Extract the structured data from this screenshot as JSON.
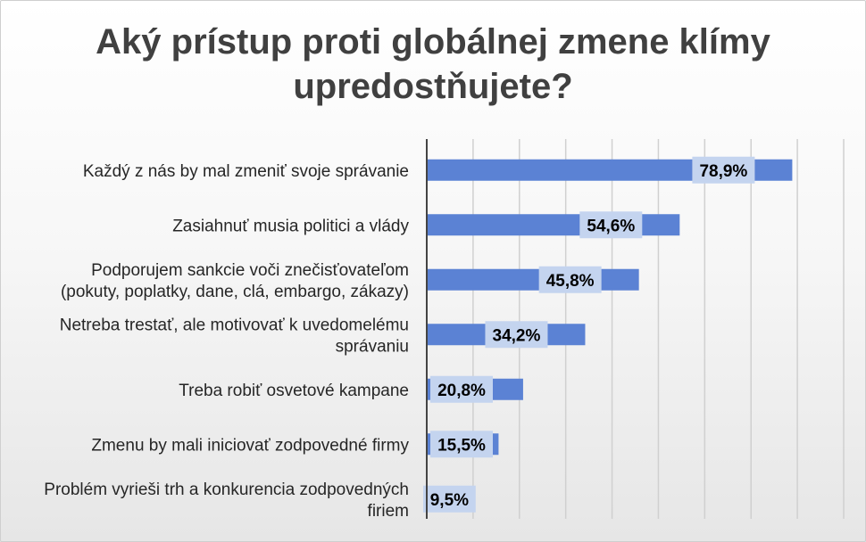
{
  "chart_data": {
    "type": "bar",
    "orientation": "horizontal",
    "title_lines": [
      "Aký prístup proti globálnej zmene klímy",
      "upredostňujete?"
    ],
    "categories": [
      "Každý z nás by mal zmeniť svoje správanie",
      "Zasiahnuť musia politici a vlády",
      "Podporujem sankcie voči znečisťovateľom (pokuty, poplatky, dane, clá, embargo, zákazy)",
      "Netreba trestať, ale motivovať k uvedomelému správaniu",
      "Treba robiť osvetové kampane",
      "Zmenu by mali iniciovať zodpovedné firmy",
      "Problém vyrieši trh a konkurencia zodpovedných firiem"
    ],
    "category_lines": [
      [
        "Každý z nás by mal zmeniť svoje správanie"
      ],
      [
        "Zasiahnuť musia politici a vlády"
      ],
      [
        "Podporujem sankcie voči znečisťovateľom",
        "(pokuty, poplatky, dane, clá, embargo, zákazy)"
      ],
      [
        "Netreba trestať, ale motivovať k uvedomelému",
        "správaniu"
      ],
      [
        "Treba robiť osvetové kampane"
      ],
      [
        "Zmenu by mali iniciovať zodpovedné firmy"
      ],
      [
        "Problém vyrieši trh a konkurencia zodpovedných",
        "firiem"
      ]
    ],
    "values": [
      78.9,
      54.6,
      45.8,
      34.2,
      20.8,
      15.5,
      9.5
    ],
    "data_labels": [
      "78,9%",
      "54,6%",
      "45,8%",
      "34,2%",
      "20,8%",
      "15,5%",
      "9,5%"
    ],
    "xlim": [
      0,
      90
    ],
    "grid": true,
    "gridline_step": 10,
    "legend": "none",
    "colors": {
      "bar": "#5b82d4",
      "label_bg": "#c4d4ef",
      "grid": "#d0d0d0",
      "axis": "#444444",
      "title": "#404040"
    }
  }
}
